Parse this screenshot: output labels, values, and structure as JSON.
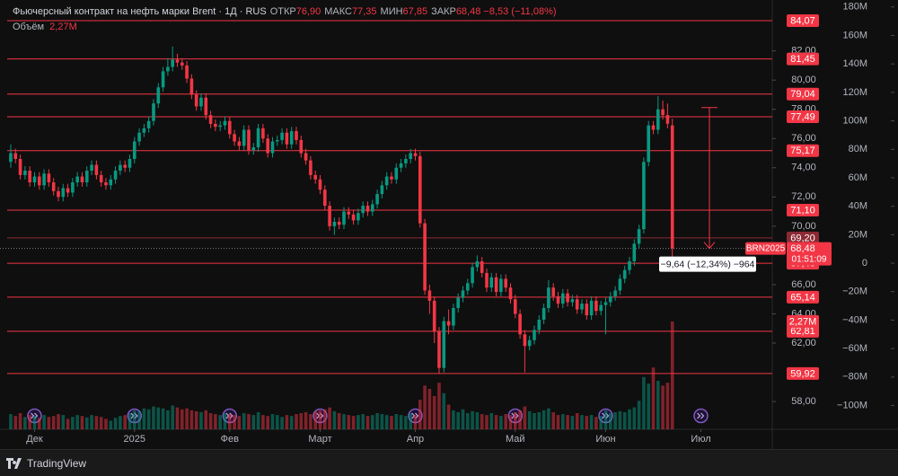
{
  "chart_data": {
    "type": "candlestick",
    "title": "Фьючерсный контракт на нефть марки Brent · 1Д · RUS",
    "legend": {
      "items": [
        {
          "label": "ОТКР",
          "value": 76.9,
          "value_label": "76,90"
        },
        {
          "label": "МАКС",
          "value": 77.35,
          "value_label": "77,35"
        },
        {
          "label": "МИН",
          "value": 67.85,
          "value_label": "67,85"
        },
        {
          "label": "ЗАКР",
          "value": 68.48,
          "value_label": "68,48"
        }
      ],
      "change": "−8,53 (−11,08%)",
      "volume_label": "Объём",
      "volume_value": {
        "value": 2.27,
        "label": "2,27M"
      }
    },
    "series": [
      {
        "name": "BRN2025",
        "up_color": "#089981",
        "down_color": "#f23645",
        "open": [
          74.4,
          75.0,
          74.6,
          73.5,
          73.8,
          73.0,
          73.4,
          72.8,
          73.6,
          73.0,
          72.4,
          72.0,
          72.6,
          72.3,
          73.0,
          73.4,
          73.0,
          73.8,
          74.2,
          73.5,
          73.0,
          72.8,
          73.2,
          73.8,
          74.2,
          74.0,
          74.6,
          75.8,
          76.4,
          76.7,
          77.2,
          78.4,
          79.5,
          80.6,
          80.9,
          81.4,
          81.2,
          81.0,
          80.1,
          79.0,
          78.2,
          78.8,
          77.6,
          77.0,
          76.8,
          76.9,
          77.2,
          76.3,
          75.8,
          75.5,
          76.6,
          75.2,
          75.4,
          76.7,
          76.0,
          75.0,
          75.8,
          75.9,
          76.4,
          75.6,
          76.5,
          75.9,
          75.0,
          74.5,
          73.5,
          73.2,
          72.5,
          71.4,
          70.0,
          70.3,
          70.1,
          71.0,
          70.8,
          70.4,
          70.9,
          71.4,
          71.0,
          71.5,
          72.2,
          72.8,
          73.4,
          73.2,
          74.0,
          74.3,
          74.6,
          75.0,
          74.8,
          70.2,
          65.6,
          64.9,
          62.8,
          60.3,
          63.5,
          63.2,
          64.4,
          65.1,
          65.6,
          66.1,
          67.2,
          67.6,
          66.8,
          65.8,
          66.5,
          65.5,
          66.4,
          65.8,
          65.0,
          64.0,
          62.6,
          61.8,
          62.2,
          62.9,
          63.6,
          64.4,
          65.8,
          65.2,
          64.7,
          65.4,
          64.8,
          65.0,
          64.3,
          64.7,
          63.9,
          64.9,
          64.2,
          64.6,
          64.8,
          65.2,
          65.6,
          66.4,
          67.0,
          67.6,
          68.8,
          69.8,
          74.4,
          76.9,
          76.6,
          78.0,
          77.6,
          76.9
        ],
        "high": [
          75.6,
          75.3,
          74.9,
          74.1,
          74.1,
          73.7,
          73.7,
          73.9,
          73.9,
          73.3,
          72.7,
          72.9,
          72.9,
          73.3,
          73.7,
          73.7,
          74.1,
          74.5,
          74.5,
          73.8,
          73.3,
          73.5,
          74.1,
          74.5,
          74.5,
          74.9,
          76.1,
          76.7,
          77.0,
          77.5,
          78.7,
          79.8,
          80.9,
          81.5,
          82.3,
          81.8,
          81.5,
          81.3,
          80.4,
          79.3,
          79.1,
          79.1,
          77.9,
          77.3,
          77.2,
          77.5,
          77.5,
          76.6,
          76.1,
          76.9,
          76.9,
          75.7,
          77.0,
          77.0,
          76.3,
          76.1,
          76.2,
          76.7,
          76.7,
          76.8,
          76.8,
          76.2,
          75.3,
          74.8,
          73.8,
          73.5,
          72.8,
          71.7,
          70.6,
          70.6,
          71.3,
          71.3,
          71.1,
          71.2,
          71.7,
          71.7,
          71.8,
          72.5,
          73.1,
          73.7,
          73.7,
          74.3,
          74.6,
          74.9,
          75.3,
          75.3,
          75.1,
          70.5,
          66.0,
          65.2,
          63.1,
          63.8,
          64.3,
          64.7,
          65.4,
          65.9,
          66.4,
          67.5,
          68.0,
          67.9,
          67.1,
          66.8,
          66.8,
          66.7,
          66.7,
          66.1,
          65.3,
          64.3,
          62.9,
          62.5,
          63.2,
          63.9,
          64.7,
          66.3,
          66.1,
          65.5,
          65.7,
          65.7,
          65.3,
          65.3,
          65.0,
          65.0,
          65.2,
          65.2,
          64.9,
          65.1,
          65.5,
          65.9,
          66.7,
          67.3,
          67.9,
          69.1,
          70.1,
          74.7,
          77.2,
          77.2,
          78.9,
          78.6,
          78.4,
          77.35
        ],
        "low": [
          74.0,
          74.3,
          73.2,
          73.2,
          72.7,
          72.7,
          72.5,
          72.5,
          72.7,
          72.1,
          71.7,
          71.7,
          72.0,
          72.0,
          72.7,
          72.7,
          72.7,
          73.5,
          73.2,
          72.7,
          72.5,
          72.5,
          72.9,
          73.5,
          73.7,
          73.7,
          74.3,
          75.5,
          76.1,
          76.4,
          76.9,
          78.1,
          79.2,
          80.3,
          80.6,
          80.9,
          80.7,
          79.8,
          78.7,
          77.9,
          77.9,
          77.3,
          76.7,
          76.5,
          76.5,
          76.6,
          76.0,
          75.5,
          75.2,
          75.2,
          74.9,
          74.9,
          75.1,
          75.7,
          74.7,
          74.7,
          75.5,
          75.6,
          75.3,
          75.3,
          75.6,
          74.7,
          74.2,
          73.2,
          72.9,
          72.2,
          71.1,
          69.7,
          69.4,
          69.8,
          69.8,
          70.5,
          70.1,
          70.1,
          70.6,
          70.7,
          70.7,
          71.2,
          71.9,
          72.5,
          72.9,
          72.9,
          73.7,
          74.0,
          74.3,
          74.5,
          69.9,
          65.3,
          64.0,
          62.0,
          59.9,
          60.0,
          62.6,
          62.9,
          64.1,
          64.8,
          65.3,
          65.8,
          66.9,
          66.5,
          65.5,
          65.5,
          65.2,
          65.2,
          65.5,
          64.7,
          63.7,
          62.3,
          60.0,
          61.5,
          61.9,
          62.6,
          63.3,
          64.1,
          64.9,
          64.4,
          64.4,
          64.5,
          64.5,
          64.0,
          64.0,
          63.6,
          63.6,
          63.9,
          63.9,
          62.6,
          64.5,
          64.9,
          65.3,
          66.1,
          66.7,
          67.3,
          68.5,
          69.5,
          74.1,
          76.3,
          76.3,
          77.3,
          76.7,
          67.85
        ],
        "close": [
          75.0,
          74.6,
          73.5,
          73.8,
          73.0,
          73.4,
          72.8,
          73.6,
          73.0,
          72.4,
          72.0,
          72.6,
          72.3,
          73.0,
          73.4,
          73.0,
          73.8,
          74.2,
          73.5,
          73.0,
          72.8,
          73.2,
          73.8,
          74.2,
          74.0,
          74.6,
          75.8,
          76.4,
          76.7,
          77.2,
          78.4,
          79.5,
          80.6,
          80.9,
          81.4,
          81.2,
          81.0,
          80.1,
          79.0,
          78.2,
          78.8,
          77.6,
          77.0,
          76.8,
          76.9,
          77.2,
          76.3,
          75.8,
          75.5,
          76.6,
          75.2,
          75.4,
          76.7,
          76.0,
          75.0,
          75.8,
          75.9,
          76.4,
          75.6,
          76.5,
          75.9,
          75.0,
          74.5,
          73.5,
          73.2,
          72.5,
          71.4,
          70.0,
          70.3,
          70.1,
          71.0,
          70.8,
          70.4,
          70.9,
          71.4,
          71.0,
          71.5,
          72.2,
          72.8,
          73.4,
          73.2,
          74.0,
          74.3,
          74.6,
          75.0,
          74.8,
          70.2,
          65.6,
          64.9,
          62.8,
          60.3,
          63.5,
          63.2,
          64.4,
          65.1,
          65.6,
          66.1,
          67.2,
          67.6,
          66.8,
          65.8,
          66.5,
          65.5,
          66.4,
          65.8,
          65.0,
          64.0,
          62.6,
          61.8,
          62.2,
          62.9,
          63.6,
          64.4,
          65.8,
          65.2,
          64.7,
          65.4,
          64.8,
          65.0,
          64.3,
          64.7,
          63.9,
          64.9,
          64.2,
          64.6,
          64.8,
          65.2,
          65.6,
          66.4,
          67.0,
          67.6,
          68.8,
          69.8,
          74.4,
          76.9,
          76.6,
          78.0,
          77.6,
          77.01,
          68.48
        ],
        "volume": [
          0.32,
          0.28,
          0.34,
          0.26,
          0.3,
          0.28,
          0.24,
          0.3,
          0.26,
          0.28,
          0.32,
          0.3,
          0.22,
          0.26,
          0.3,
          0.28,
          0.25,
          0.3,
          0.28,
          0.26,
          0.22,
          0.18,
          0.24,
          0.28,
          0.3,
          0.34,
          0.4,
          0.38,
          0.44,
          0.42,
          0.48,
          0.46,
          0.44,
          0.4,
          0.5,
          0.46,
          0.42,
          0.44,
          0.4,
          0.38,
          0.36,
          0.4,
          0.34,
          0.32,
          0.3,
          0.34,
          0.32,
          0.3,
          0.28,
          0.34,
          0.32,
          0.3,
          0.36,
          0.3,
          0.28,
          0.32,
          0.3,
          0.26,
          0.3,
          0.28,
          0.32,
          0.34,
          0.36,
          0.32,
          0.38,
          0.4,
          0.42,
          0.46,
          0.38,
          0.34,
          0.32,
          0.3,
          0.28,
          0.3,
          0.32,
          0.28,
          0.3,
          0.34,
          0.32,
          0.3,
          0.28,
          0.32,
          0.3,
          0.28,
          0.34,
          0.3,
          0.62,
          0.92,
          0.85,
          0.7,
          0.98,
          0.76,
          0.52,
          0.4,
          0.36,
          0.42,
          0.34,
          0.38,
          0.36,
          0.32,
          0.3,
          0.34,
          0.3,
          0.28,
          0.32,
          0.3,
          0.36,
          0.4,
          0.48,
          0.38,
          0.34,
          0.36,
          0.4,
          0.44,
          0.36,
          0.3,
          0.32,
          0.3,
          0.28,
          0.34,
          0.3,
          0.28,
          0.3,
          0.26,
          0.28,
          0.4,
          0.34,
          0.36,
          0.38,
          0.36,
          0.42,
          0.46,
          0.6,
          1.1,
          0.96,
          1.3,
          1.02,
          0.92,
          0.98,
          2.27
        ]
      }
    ],
    "xlim": [
      -2.26,
      160
    ],
    "xticks": [
      {
        "value": 5,
        "label": "Дек"
      },
      {
        "value": 26,
        "label": "2025"
      },
      {
        "value": 46,
        "label": "Фев"
      },
      {
        "value": 65,
        "label": "Март"
      },
      {
        "value": 85,
        "label": "Апр"
      },
      {
        "value": 106,
        "label": "Май"
      },
      {
        "value": 125,
        "label": "Июн"
      },
      {
        "value": 145,
        "label": "Июл"
      }
    ],
    "ylim": [
      56.1,
      85.48
    ],
    "yticks": [
      {
        "value": 82,
        "label": "82,00"
      },
      {
        "value": 80,
        "label": "80,00"
      },
      {
        "value": 78,
        "label": "78,00"
      },
      {
        "value": 76,
        "label": "76,00"
      },
      {
        "value": 74,
        "label": "74,00"
      },
      {
        "value": 72,
        "label": "72,00"
      },
      {
        "value": 70,
        "label": "70,00"
      },
      {
        "value": 66,
        "label": "66,00"
      },
      {
        "value": 64,
        "label": "64,00"
      },
      {
        "value": 62,
        "label": "62,00"
      },
      {
        "value": 58,
        "label": "58,00"
      }
    ],
    "y2lim": [
      -116.7,
      184.9
    ],
    "y2ticks": [
      {
        "value": 180,
        "label": "180M"
      },
      {
        "value": 160,
        "label": "160M"
      },
      {
        "value": 140,
        "label": "140M"
      },
      {
        "value": 120,
        "label": "120M"
      },
      {
        "value": 100,
        "label": "100M"
      },
      {
        "value": 80,
        "label": "80M"
      },
      {
        "value": 60,
        "label": "60M"
      },
      {
        "value": 40,
        "label": "40M"
      },
      {
        "value": 20,
        "label": "20M"
      },
      {
        "value": 0,
        "label": "0"
      },
      {
        "value": -20,
        "label": "−20M"
      },
      {
        "value": -40,
        "label": "−40M"
      },
      {
        "value": -60,
        "label": "−60M"
      },
      {
        "value": -80,
        "label": "−80M"
      },
      {
        "value": -100,
        "label": "−100M"
      }
    ],
    "levels": [
      {
        "value": 84.07,
        "label": "84,07",
        "color": "#f23645"
      },
      {
        "value": 81.45,
        "label": "81,45",
        "color": "#f23645"
      },
      {
        "value": 79.04,
        "label": "79,04",
        "color": "#f23645"
      },
      {
        "value": 77.49,
        "label": "77,49",
        "color": "#f23645"
      },
      {
        "value": 75.17,
        "label": "75,17",
        "color": "#f23645"
      },
      {
        "value": 71.1,
        "label": "71,10",
        "color": "#f23645"
      },
      {
        "value": 69.2,
        "label": "69,20",
        "color": "#8c2a34"
      },
      {
        "value": 67.46,
        "label": "67,46",
        "color": "#f23645"
      },
      {
        "value": 65.14,
        "label": "65,14",
        "color": "#f23645"
      },
      {
        "value": 62.81,
        "label": "62,81",
        "color": "#f23645"
      },
      {
        "value": 59.92,
        "label": "59,92",
        "color": "#f23645"
      }
    ],
    "price_tag": {
      "value": 68.48,
      "label": "68,48",
      "symbol": "BRN2025",
      "countdown": "01:51:09",
      "color": "#f23645"
    },
    "volume_tag": {
      "value": 2.27,
      "label": "2,27M",
      "color": "#f23645"
    },
    "measure": {
      "from": 78.12,
      "to": 68.48,
      "label": "−9,64 (−12,34%) −964",
      "color": "#f23645"
    },
    "brand": "TradingView"
  }
}
